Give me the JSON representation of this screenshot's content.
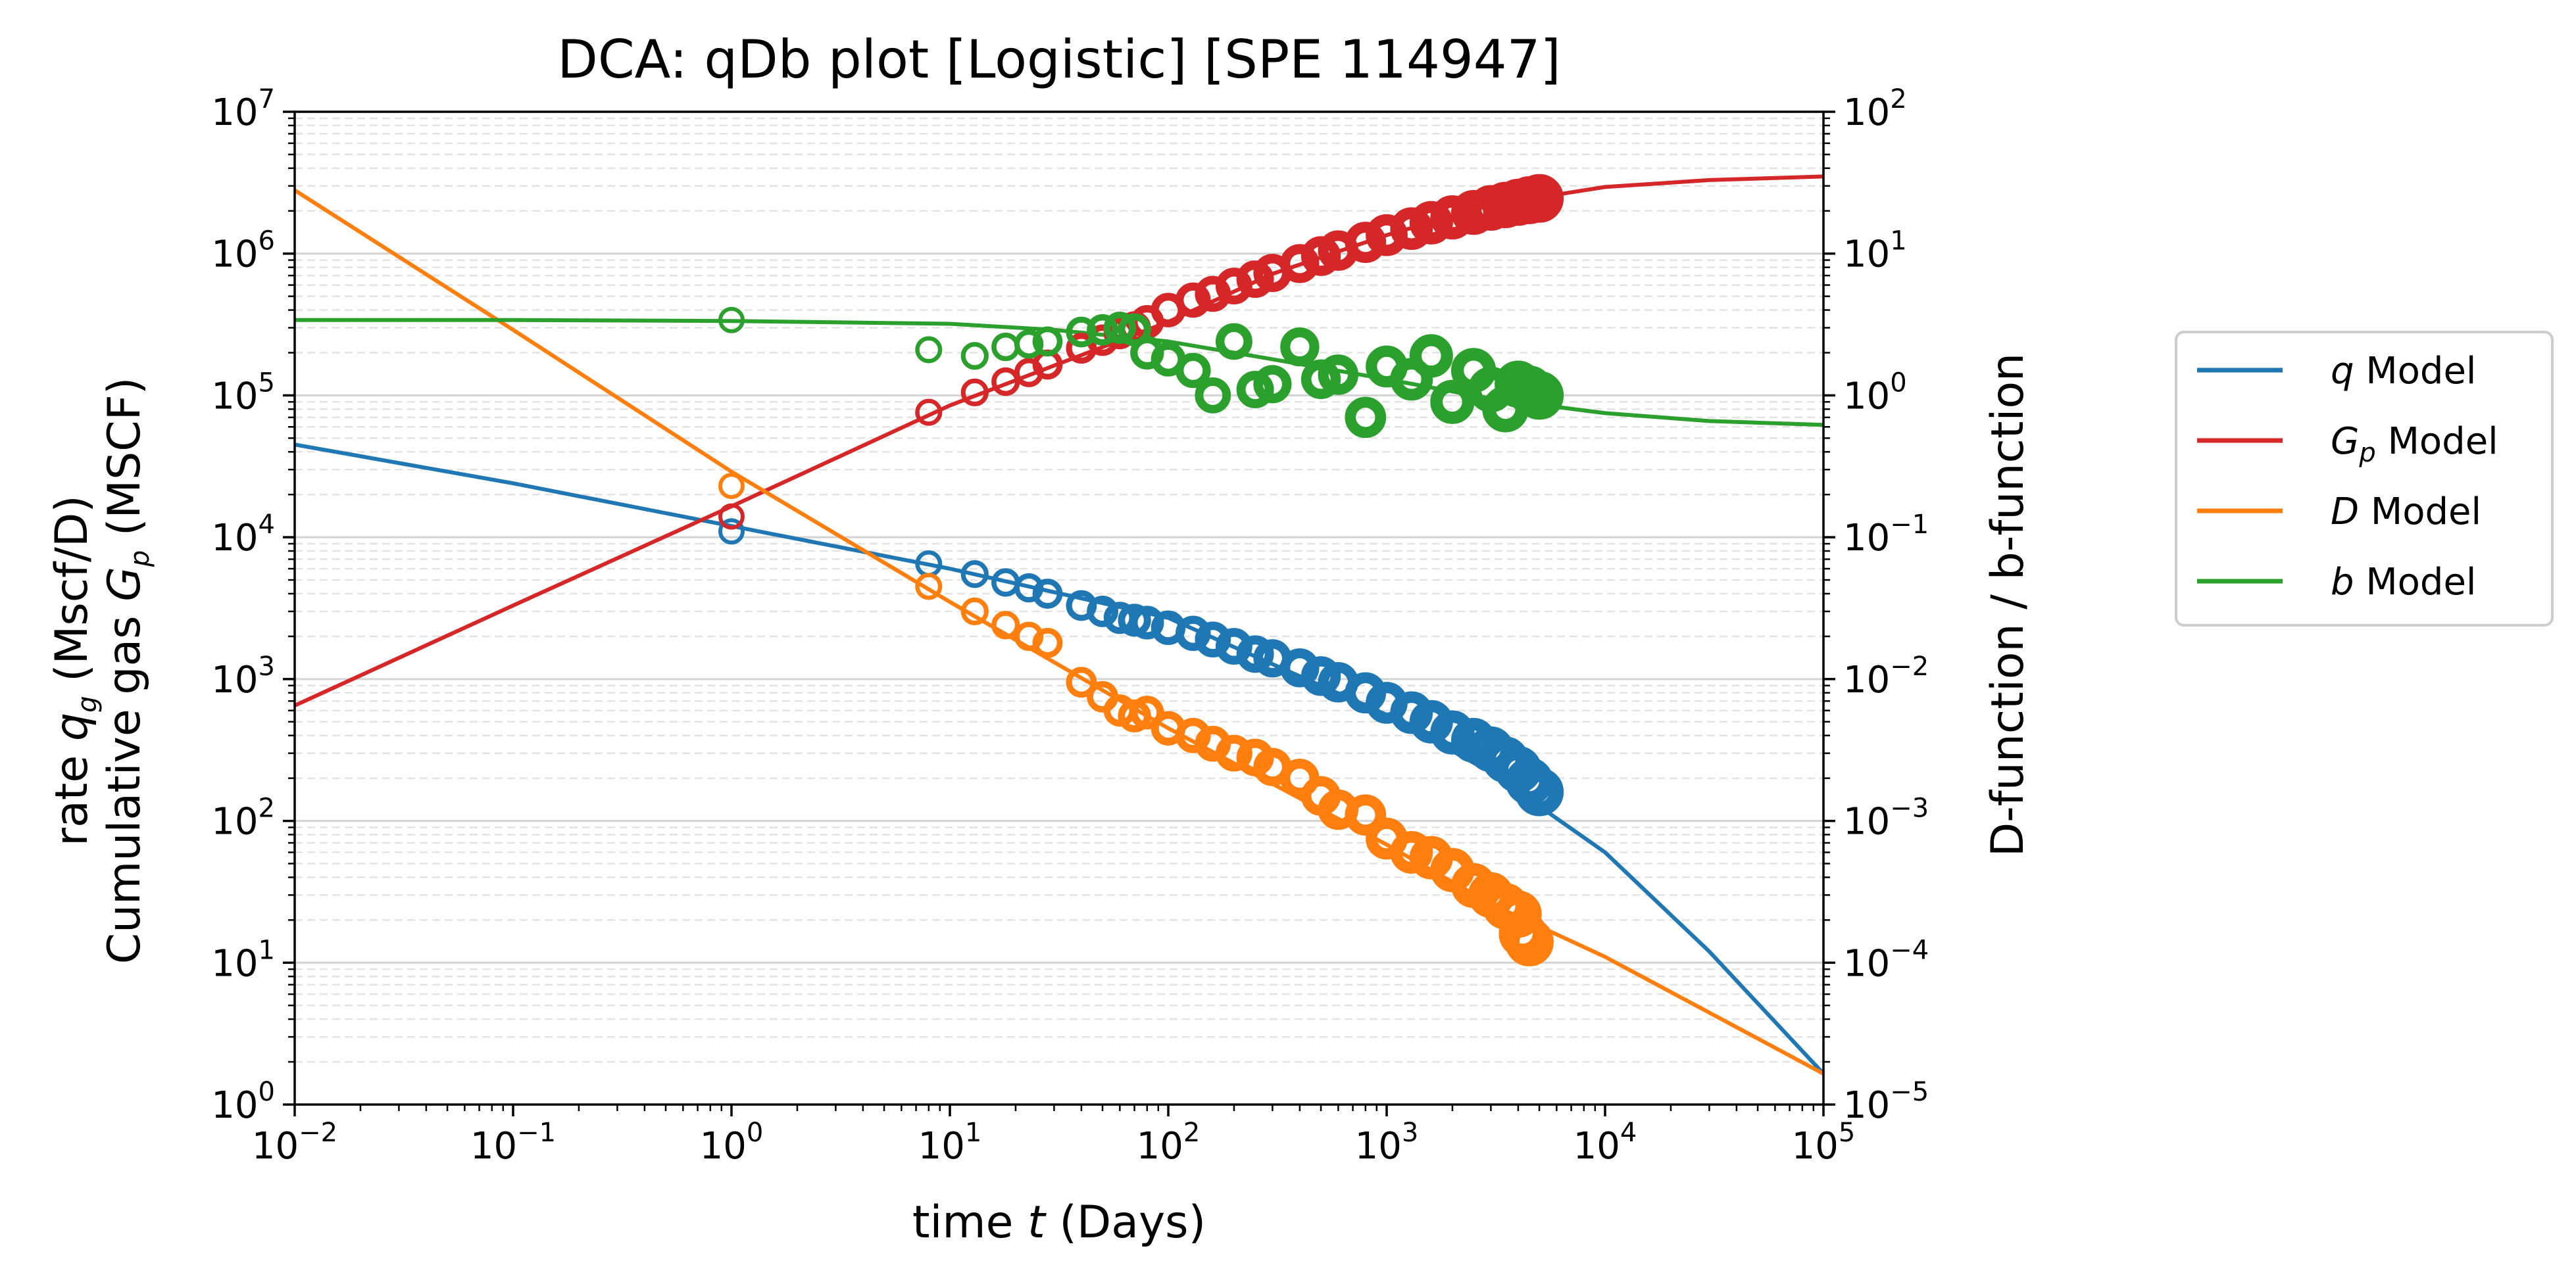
{
  "chart_data": {
    "type": "scatter",
    "title": "DCA: qDb plot  [Logistic]  [SPE 114947]",
    "xlabel": {
      "prefix": "time ",
      "var": "t",
      "suffix": " (Days)"
    },
    "ylabel_left": {
      "line1": {
        "prefix": "rate ",
        "var": "q",
        "sub": "g",
        "suffix": " (Mscf/D)"
      },
      "line2": {
        "prefix": "Cumulative gas ",
        "var": "G",
        "sub": "p",
        "suffix": " (MSCF)"
      }
    },
    "ylabel_right": "D-function / b-function",
    "x_scale": "log",
    "y_left_scale": "log",
    "y_right_scale": "log",
    "xlim": [
      0.01,
      100000
    ],
    "ylim_left": [
      1,
      10000000
    ],
    "ylim_right": [
      1e-05,
      100
    ],
    "x_ticks": [
      {
        "base": "10",
        "exp": "−2"
      },
      {
        "base": "10",
        "exp": "−1"
      },
      {
        "base": "10",
        "exp": "0"
      },
      {
        "base": "10",
        "exp": "1"
      },
      {
        "base": "10",
        "exp": "2"
      },
      {
        "base": "10",
        "exp": "3"
      },
      {
        "base": "10",
        "exp": "4"
      },
      {
        "base": "10",
        "exp": "5"
      }
    ],
    "y_left_ticks": [
      {
        "base": "10",
        "exp": "0"
      },
      {
        "base": "10",
        "exp": "1"
      },
      {
        "base": "10",
        "exp": "2"
      },
      {
        "base": "10",
        "exp": "3"
      },
      {
        "base": "10",
        "exp": "4"
      },
      {
        "base": "10",
        "exp": "5"
      },
      {
        "base": "10",
        "exp": "6"
      },
      {
        "base": "10",
        "exp": "7"
      }
    ],
    "y_right_ticks": [
      {
        "base": "10",
        "exp": "−5"
      },
      {
        "base": "10",
        "exp": "−4"
      },
      {
        "base": "10",
        "exp": "−3"
      },
      {
        "base": "10",
        "exp": "−2"
      },
      {
        "base": "10",
        "exp": "−1"
      },
      {
        "base": "10",
        "exp": "0"
      },
      {
        "base": "10",
        "exp": "1"
      },
      {
        "base": "10",
        "exp": "2"
      }
    ],
    "grid": "horizontal major solid and minor dashed",
    "legend_placement": "outside right",
    "legend": [
      {
        "var": "q",
        "sub": "",
        "suffix": " Model",
        "color": "#1f77b4"
      },
      {
        "var": "G",
        "sub": "p",
        "suffix": " Model",
        "color": "#d62728"
      },
      {
        "var": "D",
        "sub": "",
        "suffix": " Model",
        "color": "#ff7f0e"
      },
      {
        "var": "b",
        "sub": "",
        "suffix": " Model",
        "color": "#2ca02c"
      }
    ],
    "model_lines": [
      {
        "key": "q",
        "axis": "left",
        "color": "#1f77b4",
        "x": [
          0.01,
          0.1,
          1,
          10,
          100,
          1000,
          3000,
          10000,
          30000,
          100000
        ],
        "y": [
          45000,
          24000,
          12000,
          6000,
          2700,
          560,
          220,
          60,
          12,
          1.65
        ]
      },
      {
        "key": "Gp",
        "axis": "left",
        "color": "#d62728",
        "x": [
          0.01,
          0.1,
          1,
          10,
          100,
          300,
          1000,
          3000,
          10000,
          30000,
          100000
        ],
        "y": [
          650,
          3300,
          16500,
          85000,
          330000,
          720000,
          1350000,
          2200000,
          2950000,
          3300000,
          3500000
        ]
      },
      {
        "key": "D",
        "axis": "right",
        "color": "#ff7f0e",
        "x": [
          0.01,
          0.1,
          1,
          10,
          100,
          1000,
          3000,
          10000,
          100000
        ],
        "y": [
          28,
          2.9,
          0.29,
          0.035,
          0.0045,
          0.00068,
          0.00026,
          0.00011,
          1.65e-05
        ]
      },
      {
        "key": "b",
        "axis": "right",
        "color": "#2ca02c",
        "x": [
          0.01,
          0.1,
          1,
          10,
          30,
          100,
          300,
          1000,
          3000,
          10000,
          30000,
          100000
        ],
        "y": [
          3.4,
          3.4,
          3.35,
          3.2,
          2.9,
          2.4,
          1.8,
          1.3,
          0.95,
          0.75,
          0.66,
          0.62
        ]
      }
    ],
    "series": [
      {
        "name": "q",
        "axis": "left",
        "color": "#1f77b4",
        "x": [
          1,
          8,
          13,
          18,
          23,
          28,
          40,
          50,
          60,
          70,
          80,
          100,
          130,
          160,
          200,
          250,
          300,
          400,
          500,
          600,
          800,
          1000,
          1300,
          1600,
          2000,
          2500,
          3000,
          3500,
          4000,
          4500,
          5000
        ],
        "y": [
          11000,
          6500,
          5500,
          4800,
          4400,
          4000,
          3300,
          3000,
          2700,
          2600,
          2500,
          2300,
          2100,
          1900,
          1700,
          1500,
          1400,
          1200,
          1050,
          950,
          800,
          680,
          580,
          500,
          420,
          370,
          320,
          270,
          230,
          190,
          160
        ]
      },
      {
        "name": "Gp",
        "axis": "left",
        "color": "#d62728",
        "x": [
          1,
          8,
          13,
          18,
          23,
          28,
          40,
          50,
          60,
          70,
          80,
          100,
          130,
          160,
          200,
          250,
          300,
          400,
          500,
          600,
          800,
          1000,
          1300,
          1600,
          2000,
          2500,
          3000,
          3500,
          4000,
          4500,
          5000
        ],
        "y": [
          14000,
          76000,
          105000,
          125000,
          145000,
          165000,
          215000,
          245000,
          275000,
          300000,
          330000,
          400000,
          470000,
          520000,
          590000,
          660000,
          730000,
          850000,
          960000,
          1050000,
          1200000,
          1350000,
          1500000,
          1650000,
          1800000,
          1950000,
          2100000,
          2200000,
          2300000,
          2380000,
          2450000
        ]
      },
      {
        "name": "D",
        "axis": "right",
        "color": "#ff7f0e",
        "x": [
          1,
          8,
          13,
          18,
          23,
          28,
          40,
          50,
          60,
          70,
          80,
          100,
          130,
          160,
          200,
          250,
          300,
          400,
          500,
          600,
          800,
          1000,
          1300,
          1600,
          2000,
          2500,
          3000,
          3500,
          4000,
          4200,
          4500
        ],
        "y": [
          0.23,
          0.045,
          0.03,
          0.024,
          0.02,
          0.018,
          0.0095,
          0.0075,
          0.006,
          0.0055,
          0.0058,
          0.0045,
          0.004,
          0.0035,
          0.003,
          0.0028,
          0.0024,
          0.002,
          0.0015,
          0.0012,
          0.0011,
          0.00075,
          0.0006,
          0.00055,
          0.00045,
          0.00035,
          0.0003,
          0.00025,
          0.00022,
          0.00016,
          0.00014
        ]
      },
      {
        "name": "b",
        "axis": "right",
        "color": "#2ca02c",
        "x": [
          1,
          8,
          13,
          18,
          23,
          28,
          40,
          50,
          60,
          70,
          80,
          100,
          130,
          160,
          200,
          250,
          300,
          400,
          500,
          600,
          800,
          1000,
          1300,
          1600,
          2000,
          2500,
          3000,
          3500,
          4000,
          4500,
          5000
        ],
        "y": [
          3.4,
          2.1,
          1.9,
          2.2,
          2.3,
          2.4,
          2.8,
          2.9,
          3.0,
          2.9,
          2.0,
          1.8,
          1.5,
          1.0,
          2.4,
          1.1,
          1.2,
          2.2,
          1.3,
          1.4,
          0.7,
          1.6,
          1.3,
          1.9,
          0.9,
          1.5,
          1.1,
          0.8,
          1.2,
          1.1,
          1.0
        ]
      }
    ]
  }
}
